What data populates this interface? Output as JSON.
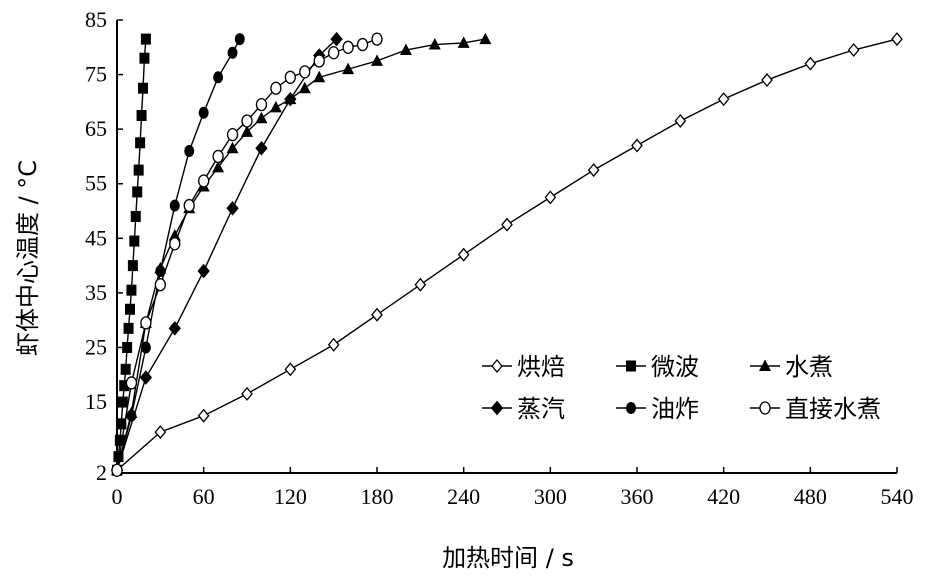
{
  "chart_data": {
    "type": "line",
    "xlabel": "加热时间 / s",
    "ylabel": "虾体中心温度 / °C",
    "xlim": [
      0,
      540
    ],
    "ylim": [
      2,
      85
    ],
    "xticks": [
      0,
      60,
      120,
      180,
      240,
      300,
      360,
      420,
      480,
      540
    ],
    "yticks": [
      2,
      15,
      25,
      35,
      45,
      55,
      65,
      75,
      85
    ],
    "grid": false,
    "legend_position": "bottom-right",
    "series": [
      {
        "name": "烘焙",
        "marker": "diamond-open",
        "x": [
          0,
          30,
          60,
          90,
          120,
          150,
          180,
          210,
          240,
          270,
          300,
          330,
          360,
          390,
          420,
          450,
          480,
          510,
          540
        ],
        "y": [
          2.5,
          9.5,
          12.5,
          16.5,
          21,
          25.5,
          31,
          36.5,
          42,
          47.5,
          52.5,
          57.5,
          62,
          66.5,
          70.5,
          74,
          77,
          79.5,
          81.5
        ]
      },
      {
        "name": "微波",
        "marker": "square-filled",
        "x": [
          0,
          1,
          2,
          3,
          4,
          5,
          6,
          7,
          8,
          9,
          10,
          11,
          12,
          13,
          14,
          15,
          16,
          17,
          18,
          19,
          20
        ],
        "y": [
          2.5,
          5,
          8,
          11,
          15,
          18,
          21,
          25,
          28.5,
          32,
          35.5,
          40,
          44.5,
          49,
          53.5,
          57.5,
          62.5,
          67.5,
          72.5,
          78,
          81.5
        ]
      },
      {
        "name": "水煮",
        "marker": "triangle-filled",
        "x": [
          0,
          10,
          20,
          30,
          40,
          50,
          60,
          70,
          80,
          90,
          100,
          110,
          120,
          130,
          140,
          160,
          180,
          200,
          220,
          240,
          255
        ],
        "y": [
          2.5,
          13,
          29.5,
          39.5,
          45.5,
          50.5,
          54.5,
          58,
          61.5,
          64.5,
          67,
          69,
          70.5,
          72.5,
          74.5,
          76,
          77.5,
          79.5,
          80.5,
          80.8,
          81.5
        ]
      },
      {
        "name": "蒸汽",
        "marker": "diamond-filled",
        "x": [
          0,
          20,
          40,
          60,
          80,
          100,
          120,
          140,
          152
        ],
        "y": [
          2.5,
          19.5,
          28.5,
          39,
          50.5,
          61.5,
          70.5,
          78.5,
          81.5
        ]
      },
      {
        "name": "油炸",
        "marker": "circle-filled",
        "x": [
          0,
          10,
          20,
          30,
          40,
          50,
          60,
          70,
          80,
          85
        ],
        "y": [
          2.5,
          12.5,
          25,
          39,
          51,
          61,
          68,
          74.5,
          79,
          81.5
        ]
      },
      {
        "name": "直接水煮",
        "marker": "circle-open",
        "x": [
          0,
          10,
          20,
          30,
          40,
          50,
          60,
          70,
          80,
          90,
          100,
          110,
          120,
          130,
          140,
          150,
          160,
          170,
          180
        ],
        "y": [
          2.5,
          18.5,
          29.5,
          36.5,
          44,
          51,
          55.5,
          60,
          64,
          66.5,
          69.5,
          72.5,
          74.5,
          75.5,
          77.5,
          79,
          80,
          80.5,
          81.5
        ]
      }
    ]
  }
}
